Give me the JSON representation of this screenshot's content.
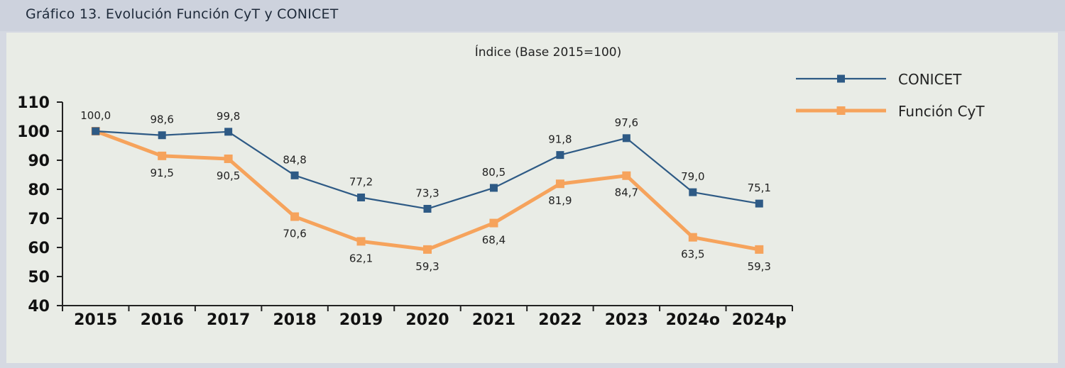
{
  "header": {
    "title": "Gráfico 13. Evolución Función CyT y CONICET"
  },
  "colors": {
    "conicet": "#2e5a85",
    "funcion": "#f6a35c",
    "axis": "#222222",
    "panel": "#e9ece6",
    "header": "#cdd2dd"
  },
  "chart_data": {
    "type": "line",
    "title": "Gráfico 13. Evolución Función CyT y CONICET",
    "subtitle": "Índice (Base 2015=100)",
    "categories": [
      "2015",
      "2016",
      "2017",
      "2018",
      "2019",
      "2020",
      "2021",
      "2022",
      "2023",
      "2024o",
      "2024p"
    ],
    "series": [
      {
        "name": "CONICET",
        "values": [
          100.0,
          98.6,
          99.8,
          84.8,
          77.2,
          73.3,
          80.5,
          91.8,
          97.6,
          79.0,
          75.1
        ],
        "labels": [
          "100,0",
          "98,6",
          "99,8",
          "84,8",
          "77,2",
          "73,3",
          "80,5",
          "91,8",
          "97,6",
          "79,0",
          "75,1"
        ]
      },
      {
        "name": "Función CyT",
        "values": [
          100.0,
          91.5,
          90.5,
          70.6,
          62.1,
          59.3,
          68.4,
          81.9,
          84.7,
          63.5,
          59.3
        ],
        "labels": [
          "",
          "91,5",
          "90,5",
          "70,6",
          "62,1",
          "59,3",
          "68,4",
          "81,9",
          "84,7",
          "63,5",
          "59,3"
        ]
      }
    ],
    "yticks": [
      "40",
      "50",
      "60",
      "70",
      "80",
      "90",
      "100",
      "110"
    ],
    "ylim": [
      40,
      110
    ],
    "grid": false,
    "legend": "top-right"
  }
}
